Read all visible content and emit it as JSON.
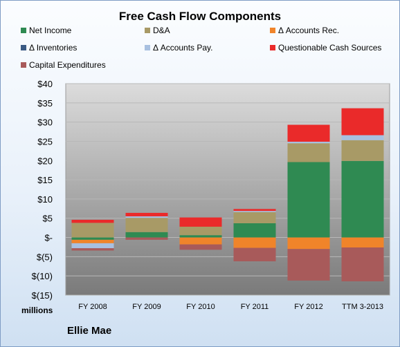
{
  "chart_data": {
    "type": "stacked-bar",
    "title": "Free Cash Flow Components",
    "units_label": "millions",
    "company": "Ellie Mae",
    "categories": [
      "FY 2008",
      "FY 2009",
      "FY 2010",
      "FY 2011",
      "FY 2012",
      "TTM 3-2013"
    ],
    "y_ticks": [
      "$40",
      "$35",
      "$30",
      "$25",
      "$20",
      "$15",
      "$10",
      "$5",
      "$-",
      "$(5)",
      "$(10)",
      "$(15)"
    ],
    "ylim": [
      -15,
      40
    ],
    "grid": true,
    "legend_position": "top",
    "series": [
      {
        "name": "Net Income",
        "color": "#2f8a52",
        "values": [
          -0.6,
          1.4,
          0.6,
          3.7,
          19.6,
          19.9
        ]
      },
      {
        "name": "D&A",
        "color": "#a89a66",
        "values": [
          3.8,
          3.7,
          2.2,
          2.9,
          4.9,
          5.4
        ]
      },
      {
        "name": "Δ Accounts Rec.",
        "color": "#f0842a",
        "values": [
          -0.9,
          0,
          -1.8,
          -2.7,
          -3.0,
          -2.6
        ]
      },
      {
        "name": "Δ Inventories",
        "color": "#3a5a84",
        "values": [
          0,
          0,
          0,
          0,
          0,
          0
        ]
      },
      {
        "name": "Δ Accounts Pay.",
        "color": "#a8c0e0",
        "values": [
          -1.3,
          0.4,
          0,
          0.3,
          0.4,
          1.3
        ]
      },
      {
        "name": "Questionable Cash Sources",
        "color": "#ea2a2a",
        "values": [
          0.8,
          0.9,
          2.4,
          0.5,
          4.4,
          7.0
        ]
      },
      {
        "name": "Capital Expenditures",
        "color": "#a85a5a",
        "values": [
          -0.6,
          -0.6,
          -1.4,
          -3.5,
          -8.2,
          -8.8
        ]
      }
    ]
  }
}
